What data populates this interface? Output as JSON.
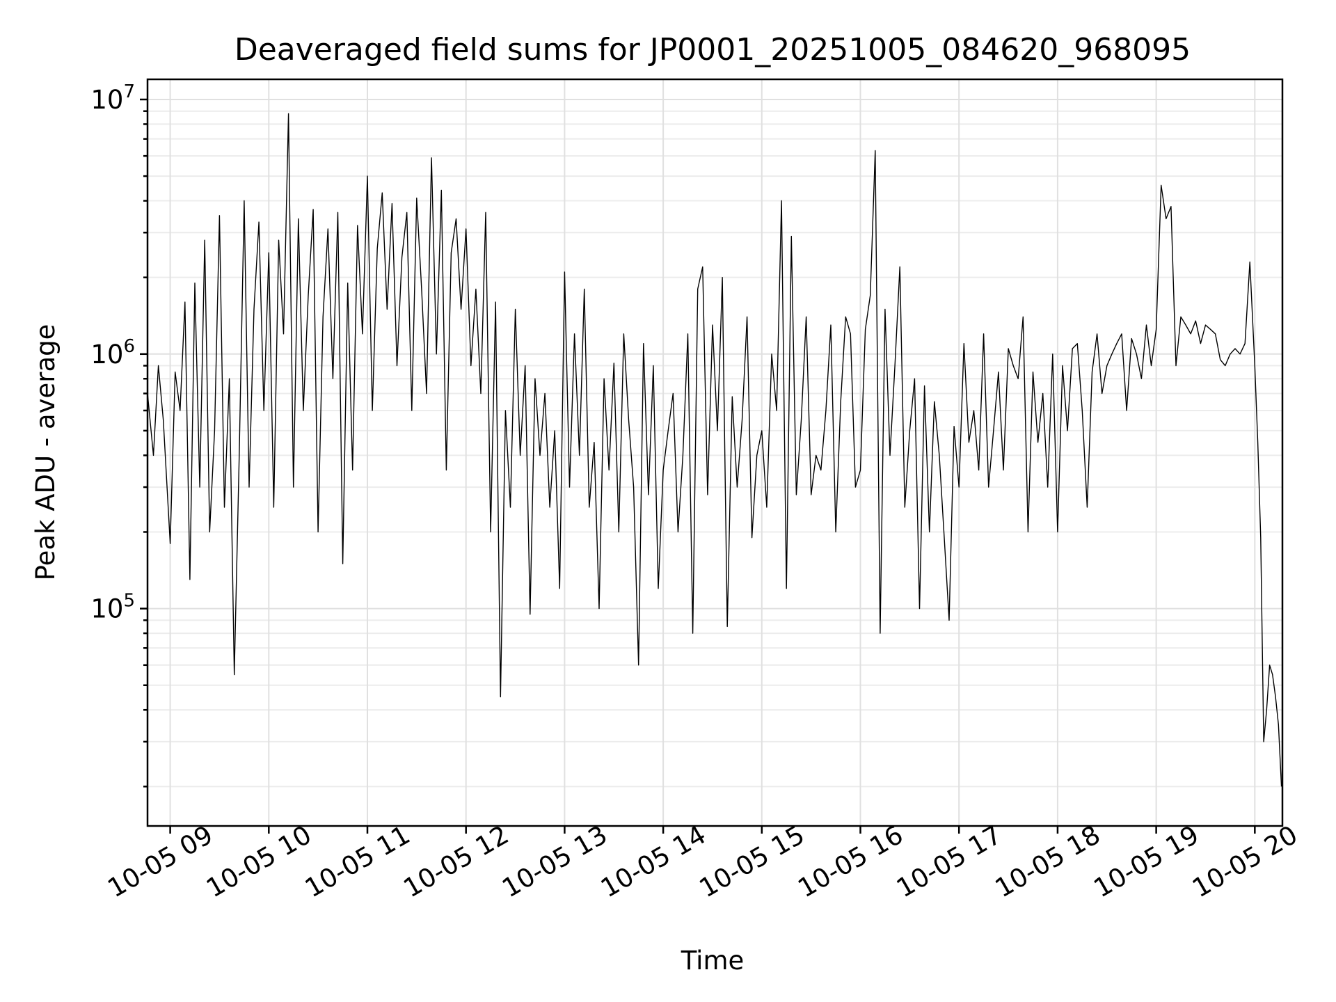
{
  "chart_data": {
    "type": "line",
    "title": "Deaveraged field sums for JP0001_20251005_084620_968095",
    "xlabel": "Time",
    "ylabel": "Peak ADU - average",
    "yscale": "log",
    "xlim_hours": [
      8.77,
      20.28
    ],
    "ylim": [
      14000,
      12000000
    ],
    "grid": true,
    "x_ticks": [
      {
        "label": "10-05 09",
        "hour": 9
      },
      {
        "label": "10-05 10",
        "hour": 10
      },
      {
        "label": "10-05 11",
        "hour": 11
      },
      {
        "label": "10-05 12",
        "hour": 12
      },
      {
        "label": "10-05 13",
        "hour": 13
      },
      {
        "label": "10-05 14",
        "hour": 14
      },
      {
        "label": "10-05 15",
        "hour": 15
      },
      {
        "label": "10-05 16",
        "hour": 16
      },
      {
        "label": "10-05 17",
        "hour": 17
      },
      {
        "label": "10-05 18",
        "hour": 18
      },
      {
        "label": "10-05 19",
        "hour": 19
      },
      {
        "label": "10-05 20",
        "hour": 20
      }
    ],
    "y_ticks": [
      {
        "base": "10",
        "exp": "5",
        "value": 100000
      },
      {
        "base": "10",
        "exp": "6",
        "value": 1000000
      },
      {
        "base": "10",
        "exp": "7",
        "value": 10000000
      }
    ],
    "series": [
      {
        "name": "Deaveraged field sums",
        "color": "#000000",
        "x_hours": [
          8.77,
          8.83,
          8.88,
          8.93,
          9.0,
          9.05,
          9.1,
          9.15,
          9.2,
          9.25,
          9.3,
          9.35,
          9.4,
          9.45,
          9.5,
          9.55,
          9.6,
          9.65,
          9.7,
          9.75,
          9.8,
          9.85,
          9.9,
          9.95,
          10.0,
          10.05,
          10.1,
          10.15,
          10.2,
          10.25,
          10.3,
          10.35,
          10.4,
          10.45,
          10.5,
          10.55,
          10.6,
          10.65,
          10.7,
          10.75,
          10.8,
          10.85,
          10.9,
          10.95,
          11.0,
          11.05,
          11.1,
          11.15,
          11.2,
          11.25,
          11.3,
          11.35,
          11.4,
          11.45,
          11.5,
          11.55,
          11.6,
          11.65,
          11.7,
          11.75,
          11.8,
          11.85,
          11.9,
          11.95,
          12.0,
          12.05,
          12.1,
          12.15,
          12.2,
          12.25,
          12.3,
          12.35,
          12.4,
          12.45,
          12.5,
          12.55,
          12.6,
          12.65,
          12.7,
          12.75,
          12.8,
          12.85,
          12.9,
          12.95,
          13.0,
          13.05,
          13.1,
          13.15,
          13.2,
          13.25,
          13.3,
          13.35,
          13.4,
          13.45,
          13.5,
          13.55,
          13.6,
          13.65,
          13.7,
          13.75,
          13.8,
          13.85,
          13.9,
          13.95,
          14.0,
          14.05,
          14.1,
          14.15,
          14.2,
          14.25,
          14.3,
          14.35,
          14.4,
          14.45,
          14.5,
          14.55,
          14.6,
          14.65,
          14.7,
          14.75,
          14.8,
          14.85,
          14.9,
          14.95,
          15.0,
          15.05,
          15.1,
          15.15,
          15.2,
          15.25,
          15.3,
          15.35,
          15.4,
          15.45,
          15.5,
          15.55,
          15.6,
          15.65,
          15.7,
          15.75,
          15.8,
          15.85,
          15.9,
          15.95,
          16.0,
          16.05,
          16.1,
          16.15,
          16.2,
          16.25,
          16.3,
          16.35,
          16.4,
          16.45,
          16.5,
          16.55,
          16.6,
          16.65,
          16.7,
          16.75,
          16.8,
          16.85,
          16.9,
          16.95,
          17.0,
          17.05,
          17.1,
          17.15,
          17.2,
          17.25,
          17.3,
          17.35,
          17.4,
          17.45,
          17.5,
          17.55,
          17.6,
          17.65,
          17.7,
          17.75,
          17.8,
          17.85,
          17.9,
          17.95,
          18.0,
          18.05,
          18.1,
          18.15,
          18.2,
          18.25,
          18.3,
          18.35,
          18.4,
          18.45,
          18.5,
          18.55,
          18.6,
          18.65,
          18.7,
          18.75,
          18.8,
          18.85,
          18.9,
          18.95,
          19.0,
          19.05,
          19.1,
          19.15,
          19.2,
          19.25,
          19.3,
          19.35,
          19.4,
          19.45,
          19.5,
          19.55,
          19.6,
          19.65,
          19.7,
          19.75,
          19.8,
          19.85,
          19.9,
          19.95,
          20.0,
          20.03,
          20.06,
          20.09,
          20.12,
          20.15,
          20.18,
          20.21,
          20.24,
          20.27
        ],
        "values": [
          700000,
          400000,
          900000,
          550000,
          180000,
          850000,
          600000,
          1600000,
          130000,
          1900000,
          300000,
          2800000,
          200000,
          500000,
          3500000,
          250000,
          800000,
          55000,
          400000,
          4000000,
          300000,
          1500000,
          3300000,
          600000,
          2500000,
          250000,
          2800000,
          1200000,
          8800000,
          300000,
          3400000,
          600000,
          1700000,
          3700000,
          200000,
          1400000,
          3100000,
          800000,
          3600000,
          150000,
          1900000,
          350000,
          3200000,
          1200000,
          5000000,
          600000,
          2600000,
          4300000,
          1500000,
          3900000,
          900000,
          2400000,
          3600000,
          600000,
          4100000,
          1800000,
          700000,
          5900000,
          1000000,
          4400000,
          350000,
          2500000,
          3400000,
          1500000,
          3100000,
          900000,
          1800000,
          700000,
          3600000,
          200000,
          1600000,
          45000,
          600000,
          250000,
          1500000,
          400000,
          900000,
          95000,
          800000,
          400000,
          700000,
          250000,
          500000,
          120000,
          2100000,
          300000,
          1200000,
          400000,
          1800000,
          250000,
          450000,
          100000,
          800000,
          350000,
          920000,
          200000,
          1200000,
          550000,
          300000,
          60000,
          1100000,
          280000,
          900000,
          120000,
          350000,
          500000,
          700000,
          200000,
          400000,
          1200000,
          80000,
          1800000,
          2200000,
          280000,
          1300000,
          500000,
          2000000,
          85000,
          680000,
          300000,
          550000,
          1400000,
          190000,
          400000,
          500000,
          250000,
          1000000,
          600000,
          4000000,
          120000,
          2900000,
          280000,
          550000,
          1400000,
          280000,
          400000,
          350000,
          600000,
          1300000,
          200000,
          650000,
          1400000,
          1200000,
          300000,
          350000,
          1250000,
          1700000,
          6300000,
          80000,
          1500000,
          400000,
          900000,
          2200000,
          250000,
          500000,
          800000,
          100000,
          750000,
          200000,
          650000,
          400000,
          190000,
          90000,
          520000,
          300000,
          1100000,
          450000,
          600000,
          350000,
          1200000,
          300000,
          500000,
          850000,
          350000,
          1050000,
          900000,
          800000,
          1400000,
          200000,
          850000,
          450000,
          700000,
          300000,
          1000000,
          200000,
          900000,
          500000,
          1050000,
          1100000,
          600000,
          250000,
          850000,
          1200000,
          700000,
          900000,
          1000000,
          1100000,
          1200000,
          600000,
          1150000,
          1000000,
          800000,
          1300000,
          900000,
          1250000,
          4600000,
          3400000,
          3800000,
          900000,
          1400000,
          1300000,
          1200000,
          1350000,
          1100000,
          1300000,
          1250000,
          1200000,
          950000,
          900000,
          1000000,
          1050000,
          1000000,
          1100000,
          2300000,
          900000,
          450000,
          190000,
          30000,
          40000,
          60000,
          55000,
          45000,
          35000,
          20000
        ]
      }
    ]
  }
}
